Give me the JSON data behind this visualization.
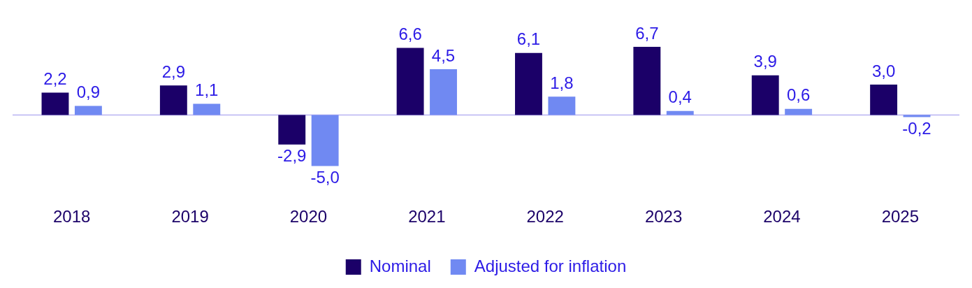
{
  "chart_data": {
    "type": "bar",
    "categories": [
      "2018",
      "2019",
      "2020",
      "2021",
      "2022",
      "2023",
      "2024",
      "2025"
    ],
    "series": [
      {
        "name": "Nominal",
        "color": "#1b0068",
        "values": [
          2.2,
          2.9,
          -2.9,
          6.6,
          6.1,
          6.7,
          3.9,
          3.0
        ],
        "value_labels": [
          "2,2",
          "2,9",
          "-2,9",
          "6,6",
          "6,1",
          "6,7",
          "3,9",
          "3,0"
        ]
      },
      {
        "name": "Adjusted for inflation",
        "color": "#7089f2",
        "values": [
          0.9,
          1.1,
          -5.0,
          4.5,
          1.8,
          0.4,
          0.6,
          -0.2
        ],
        "value_labels": [
          "0,9",
          "1,1",
          "-5,0",
          "4,5",
          "1,8",
          "0,4",
          "0,6",
          "-0,2"
        ]
      }
    ],
    "ref_lines": [
      {
        "axis": "y",
        "value": 0,
        "color": "#b9b2f2"
      }
    ],
    "grid": false,
    "legend": "bottom"
  }
}
